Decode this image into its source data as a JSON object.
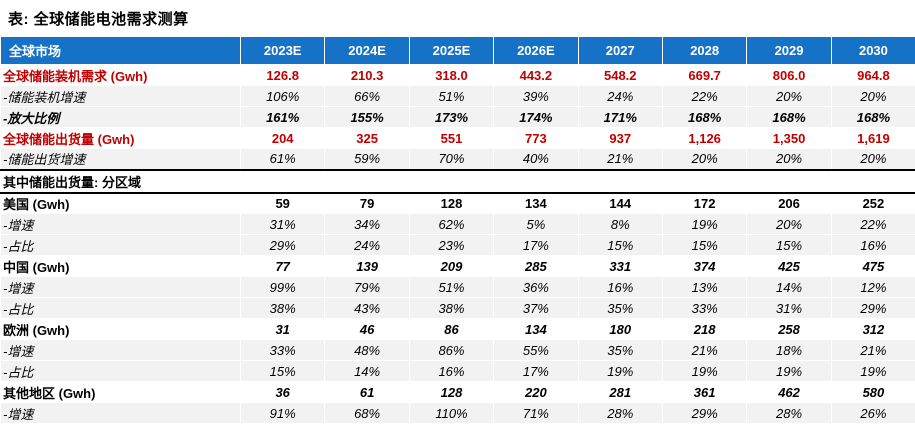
{
  "title": "表: 全球储能电池需求测算",
  "colors": {
    "header_bg": "#1672C6",
    "highlight_red": "#C00000",
    "row_stripe": "#F2F2F2",
    "header_text": "#FFFFFF"
  },
  "chart_data": {
    "type": "table",
    "title": "全球储能电池需求测算",
    "columns": [
      "全球市场",
      "2023E",
      "2024E",
      "2025E",
      "2026E",
      "2027",
      "2028",
      "2029",
      "2030"
    ],
    "rows": [
      {
        "label": "全球储能装机需求 (Gwh)",
        "style": "red-bold",
        "values": [
          "126.8",
          "210.3",
          "318.0",
          "443.2",
          "548.2",
          "669.7",
          "806.0",
          "964.8"
        ]
      },
      {
        "label": "-储能装机增速",
        "style": "sub",
        "values": [
          "106%",
          "66%",
          "51%",
          "39%",
          "24%",
          "22%",
          "20%",
          "20%"
        ]
      },
      {
        "label": "-放大比例",
        "style": "sub-bold",
        "values": [
          "161%",
          "155%",
          "173%",
          "174%",
          "171%",
          "168%",
          "168%",
          "168%"
        ]
      },
      {
        "label": "全球储能出货量 (Gwh)",
        "style": "red-bold",
        "values": [
          "204",
          "325",
          "551",
          "773",
          "937",
          "1,126",
          "1,350",
          "1,619"
        ]
      },
      {
        "label": "-储能出货增速",
        "style": "sub",
        "values": [
          "61%",
          "59%",
          "70%",
          "40%",
          "21%",
          "20%",
          "20%",
          "20%"
        ]
      },
      {
        "label": "其中储能出货量: 分区域",
        "style": "section",
        "values": []
      },
      {
        "label": "美国 (Gwh)",
        "style": "region",
        "values": [
          "59",
          "79",
          "128",
          "134",
          "144",
          "172",
          "206",
          "252"
        ]
      },
      {
        "label": "-增速",
        "style": "sub",
        "values": [
          "31%",
          "34%",
          "62%",
          "5%",
          "8%",
          "19%",
          "20%",
          "22%"
        ]
      },
      {
        "label": "-占比",
        "style": "sub",
        "values": [
          "29%",
          "24%",
          "23%",
          "17%",
          "15%",
          "15%",
          "15%",
          "16%"
        ]
      },
      {
        "label": "中国 (Gwh)",
        "style": "region-italic",
        "values": [
          "77",
          "139",
          "209",
          "285",
          "331",
          "374",
          "425",
          "475"
        ]
      },
      {
        "label": "-增速",
        "style": "sub",
        "values": [
          "99%",
          "79%",
          "51%",
          "36%",
          "16%",
          "13%",
          "14%",
          "12%"
        ]
      },
      {
        "label": "-占比",
        "style": "sub",
        "values": [
          "38%",
          "43%",
          "38%",
          "37%",
          "35%",
          "33%",
          "31%",
          "29%"
        ]
      },
      {
        "label": "欧洲 (Gwh)",
        "style": "region-italic",
        "values": [
          "31",
          "46",
          "86",
          "134",
          "180",
          "218",
          "258",
          "312"
        ]
      },
      {
        "label": "-增速",
        "style": "sub",
        "values": [
          "33%",
          "48%",
          "86%",
          "55%",
          "35%",
          "21%",
          "18%",
          "21%"
        ]
      },
      {
        "label": "-占比",
        "style": "sub",
        "values": [
          "15%",
          "14%",
          "16%",
          "17%",
          "19%",
          "19%",
          "19%",
          "19%"
        ]
      },
      {
        "label": "其他地区 (Gwh)",
        "style": "region-italic",
        "values": [
          "36",
          "61",
          "128",
          "220",
          "281",
          "361",
          "462",
          "580"
        ]
      },
      {
        "label": "-增速",
        "style": "sub",
        "values": [
          "91%",
          "68%",
          "110%",
          "71%",
          "28%",
          "29%",
          "28%",
          "26%"
        ]
      }
    ]
  }
}
